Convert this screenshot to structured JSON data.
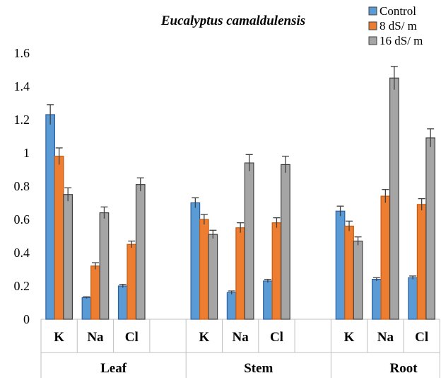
{
  "chart_data": {
    "type": "bar",
    "title": "Eucalyptus camaldulensis",
    "xlabel": "",
    "ylabel": "",
    "ylim": [
      0,
      1.6
    ],
    "yticks": [
      "0",
      "0.2",
      "0.4",
      "0.6",
      "0.8",
      "1",
      "1.2",
      "1.4",
      "1.6"
    ],
    "grid": false,
    "legend_position": "top-right",
    "groups": [
      {
        "label": "Leaf",
        "categories": [
          "K",
          "Na",
          "Cl"
        ]
      },
      {
        "label": "Stem",
        "categories": [
          "K",
          "Na",
          "Cl"
        ]
      },
      {
        "label": "Root",
        "categories": [
          "K",
          "Na",
          "Cl"
        ]
      }
    ],
    "series": [
      {
        "name": "Control",
        "color": "#5b9bd5",
        "values": [
          1.23,
          0.13,
          0.2,
          0.7,
          0.16,
          0.23,
          0.65,
          0.24,
          0.25
        ],
        "errors": [
          0.06,
          0.005,
          0.01,
          0.03,
          0.01,
          0.01,
          0.03,
          0.01,
          0.01
        ]
      },
      {
        "name": "8 dS/ m",
        "color": "#ed7d31",
        "values": [
          0.98,
          0.32,
          0.45,
          0.6,
          0.55,
          0.58,
          0.56,
          0.74,
          0.69
        ],
        "errors": [
          0.05,
          0.02,
          0.02,
          0.03,
          0.03,
          0.03,
          0.03,
          0.04,
          0.035
        ]
      },
      {
        "name": "16 dS/ m",
        "color": "#a5a5a5",
        "values": [
          0.75,
          0.64,
          0.81,
          0.51,
          0.94,
          0.93,
          0.47,
          1.45,
          1.09
        ],
        "errors": [
          0.04,
          0.035,
          0.04,
          0.025,
          0.05,
          0.05,
          0.025,
          0.07,
          0.055
        ]
      }
    ]
  }
}
